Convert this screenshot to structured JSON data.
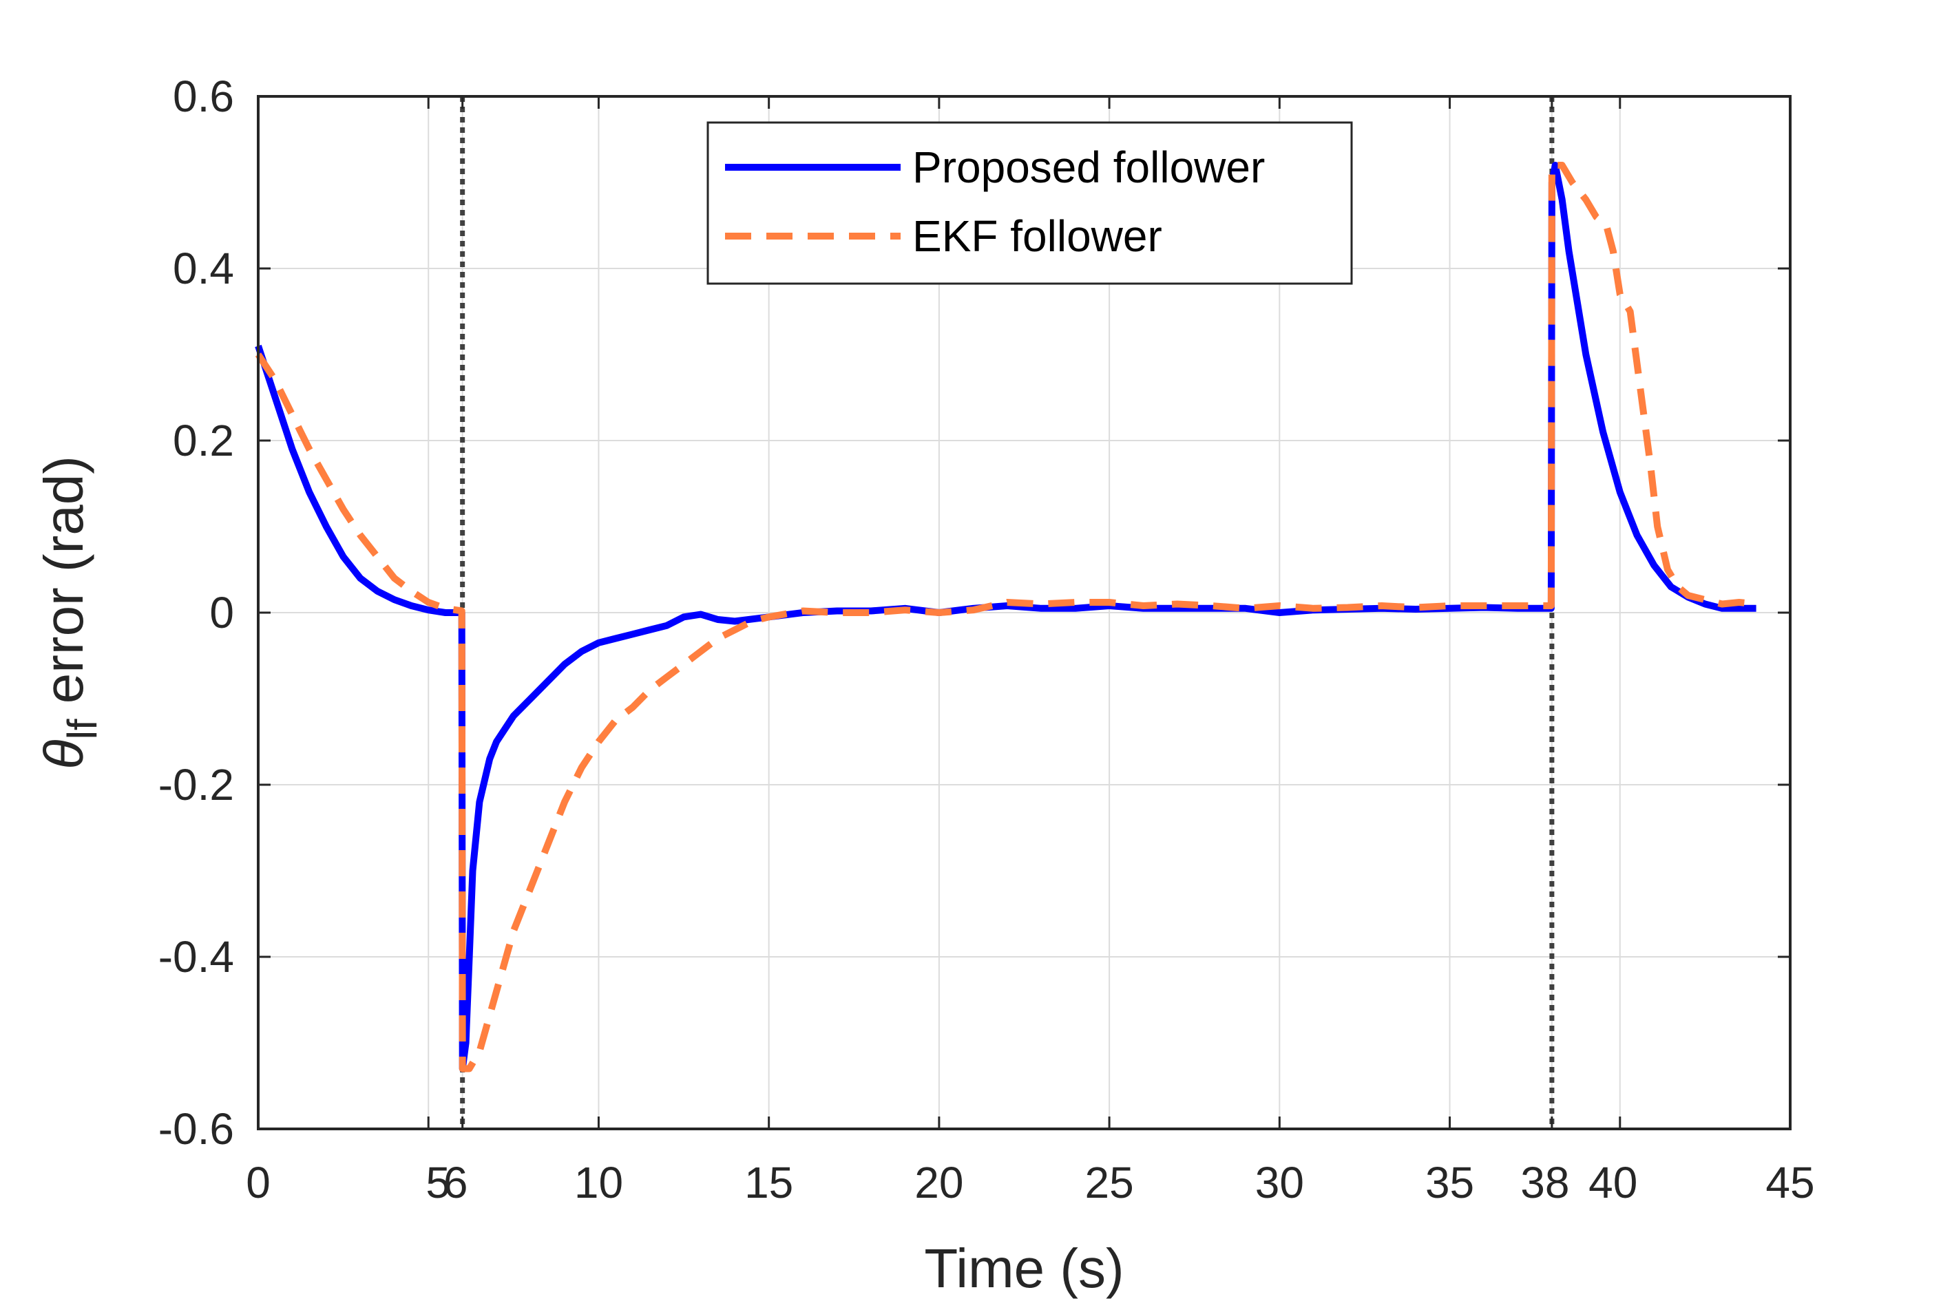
{
  "chart_data": {
    "type": "line",
    "xlabel": "Time (s)",
    "ylabel_symbol": "θ",
    "ylabel_subscript": "lf",
    "ylabel_rest": " error (rad)",
    "xlim": [
      0,
      45
    ],
    "ylim": [
      -0.6,
      0.6
    ],
    "grid": true,
    "legend_placement": "top-center",
    "x_ticks": [
      {
        "value": 0,
        "label": "0"
      },
      {
        "value": 5,
        "label": "5"
      },
      {
        "value": 6,
        "label": "6"
      },
      {
        "value": 10,
        "label": "10"
      },
      {
        "value": 15,
        "label": "15"
      },
      {
        "value": 20,
        "label": "20"
      },
      {
        "value": 25,
        "label": "25"
      },
      {
        "value": 30,
        "label": "30"
      },
      {
        "value": 35,
        "label": "35"
      },
      {
        "value": 38,
        "label": "38"
      },
      {
        "value": 40,
        "label": "40"
      },
      {
        "value": 45,
        "label": "45"
      }
    ],
    "y_ticks": [
      {
        "value": 0.6,
        "label": "0.6"
      },
      {
        "value": 0.4,
        "label": "0.4"
      },
      {
        "value": 0.2,
        "label": "0.2"
      },
      {
        "value": 0,
        "label": "0"
      },
      {
        "value": -0.2,
        "label": "-0.2"
      },
      {
        "value": -0.4,
        "label": "-0.4"
      },
      {
        "value": -0.6,
        "label": "-0.6"
      }
    ],
    "vlines": [
      6,
      38
    ],
    "series": [
      {
        "name": "Proposed follower",
        "color": "#0000ff",
        "style": "solid",
        "points": [
          [
            0,
            0.31
          ],
          [
            0.5,
            0.25
          ],
          [
            1,
            0.19
          ],
          [
            1.5,
            0.14
          ],
          [
            2,
            0.1
          ],
          [
            2.5,
            0.065
          ],
          [
            3,
            0.04
          ],
          [
            3.5,
            0.025
          ],
          [
            4,
            0.015
          ],
          [
            4.5,
            0.008
          ],
          [
            5,
            0.003
          ],
          [
            5.5,
            0.0
          ],
          [
            5.98,
            0.0
          ],
          [
            6.0,
            -0.53
          ],
          [
            6.1,
            -0.5
          ],
          [
            6.2,
            -0.4
          ],
          [
            6.3,
            -0.3
          ],
          [
            6.5,
            -0.22
          ],
          [
            6.8,
            -0.17
          ],
          [
            7,
            -0.15
          ],
          [
            7.5,
            -0.12
          ],
          [
            8,
            -0.1
          ],
          [
            8.5,
            -0.08
          ],
          [
            9,
            -0.06
          ],
          [
            9.5,
            -0.045
          ],
          [
            10,
            -0.035
          ],
          [
            10.5,
            -0.03
          ],
          [
            11,
            -0.025
          ],
          [
            11.5,
            -0.02
          ],
          [
            12,
            -0.015
          ],
          [
            12.5,
            -0.005
          ],
          [
            13,
            -0.002
          ],
          [
            13.5,
            -0.008
          ],
          [
            14,
            -0.01
          ],
          [
            15,
            -0.005
          ],
          [
            16,
            0.0
          ],
          [
            17,
            0.002
          ],
          [
            18,
            0.002
          ],
          [
            19,
            0.005
          ],
          [
            20,
            0.0
          ],
          [
            21,
            0.005
          ],
          [
            22,
            0.008
          ],
          [
            23,
            0.005
          ],
          [
            24,
            0.005
          ],
          [
            25,
            0.008
          ],
          [
            26,
            0.005
          ],
          [
            27,
            0.005
          ],
          [
            28,
            0.005
          ],
          [
            29,
            0.005
          ],
          [
            30,
            0.0
          ],
          [
            31,
            0.003
          ],
          [
            32,
            0.004
          ],
          [
            33,
            0.005
          ],
          [
            34,
            0.004
          ],
          [
            35,
            0.005
          ],
          [
            36,
            0.006
          ],
          [
            37,
            0.005
          ],
          [
            37.98,
            0.005
          ],
          [
            38.0,
            0.5
          ],
          [
            38.1,
            0.52
          ],
          [
            38.3,
            0.48
          ],
          [
            38.5,
            0.42
          ],
          [
            39,
            0.3
          ],
          [
            39.5,
            0.21
          ],
          [
            40,
            0.14
          ],
          [
            40.5,
            0.09
          ],
          [
            41,
            0.055
          ],
          [
            41.5,
            0.03
          ],
          [
            42,
            0.018
          ],
          [
            42.5,
            0.01
          ],
          [
            43,
            0.005
          ],
          [
            43.5,
            0.005
          ],
          [
            44,
            0.005
          ]
        ]
      },
      {
        "name": "EKF follower",
        "color": "#ff7f3f",
        "style": "dashed",
        "points": [
          [
            0,
            0.3
          ],
          [
            0.5,
            0.27
          ],
          [
            1,
            0.23
          ],
          [
            1.5,
            0.19
          ],
          [
            2,
            0.155
          ],
          [
            2.5,
            0.12
          ],
          [
            3,
            0.09
          ],
          [
            3.5,
            0.065
          ],
          [
            4,
            0.04
          ],
          [
            4.5,
            0.025
          ],
          [
            5,
            0.012
          ],
          [
            5.5,
            0.005
          ],
          [
            5.98,
            0.002
          ],
          [
            6.0,
            -0.53
          ],
          [
            6.2,
            -0.53
          ],
          [
            6.5,
            -0.51
          ],
          [
            7,
            -0.44
          ],
          [
            7.5,
            -0.37
          ],
          [
            8,
            -0.32
          ],
          [
            8.5,
            -0.27
          ],
          [
            9,
            -0.22
          ],
          [
            9.5,
            -0.18
          ],
          [
            10,
            -0.15
          ],
          [
            10.5,
            -0.125
          ],
          [
            11,
            -0.11
          ],
          [
            11.5,
            -0.09
          ],
          [
            12,
            -0.075
          ],
          [
            12.5,
            -0.06
          ],
          [
            13,
            -0.045
          ],
          [
            13.5,
            -0.03
          ],
          [
            14,
            -0.02
          ],
          [
            14.5,
            -0.01
          ],
          [
            15,
            -0.005
          ],
          [
            16,
            0.002
          ],
          [
            17,
            0.0
          ],
          [
            18,
            0.0
          ],
          [
            19,
            0.003
          ],
          [
            20,
            0.0
          ],
          [
            21,
            0.003
          ],
          [
            22,
            0.012
          ],
          [
            23,
            0.01
          ],
          [
            24,
            0.012
          ],
          [
            25,
            0.012
          ],
          [
            26,
            0.008
          ],
          [
            27,
            0.01
          ],
          [
            28,
            0.008
          ],
          [
            29,
            0.005
          ],
          [
            30,
            0.008
          ],
          [
            31,
            0.005
          ],
          [
            32,
            0.006
          ],
          [
            33,
            0.008
          ],
          [
            34,
            0.006
          ],
          [
            35,
            0.008
          ],
          [
            36,
            0.008
          ],
          [
            37,
            0.008
          ],
          [
            37.98,
            0.008
          ],
          [
            38.0,
            0.52
          ],
          [
            38.3,
            0.52
          ],
          [
            38.6,
            0.5
          ],
          [
            39,
            0.48
          ],
          [
            39.3,
            0.46
          ],
          [
            39.6,
            0.45
          ],
          [
            39.8,
            0.42
          ],
          [
            40,
            0.37
          ],
          [
            40.3,
            0.35
          ],
          [
            40.6,
            0.26
          ],
          [
            40.9,
            0.17
          ],
          [
            41.1,
            0.1
          ],
          [
            41.4,
            0.05
          ],
          [
            41.7,
            0.03
          ],
          [
            42,
            0.02
          ],
          [
            42.5,
            0.015
          ],
          [
            43,
            0.01
          ],
          [
            43.5,
            0.012
          ],
          [
            44,
            0.01
          ]
        ]
      }
    ]
  }
}
